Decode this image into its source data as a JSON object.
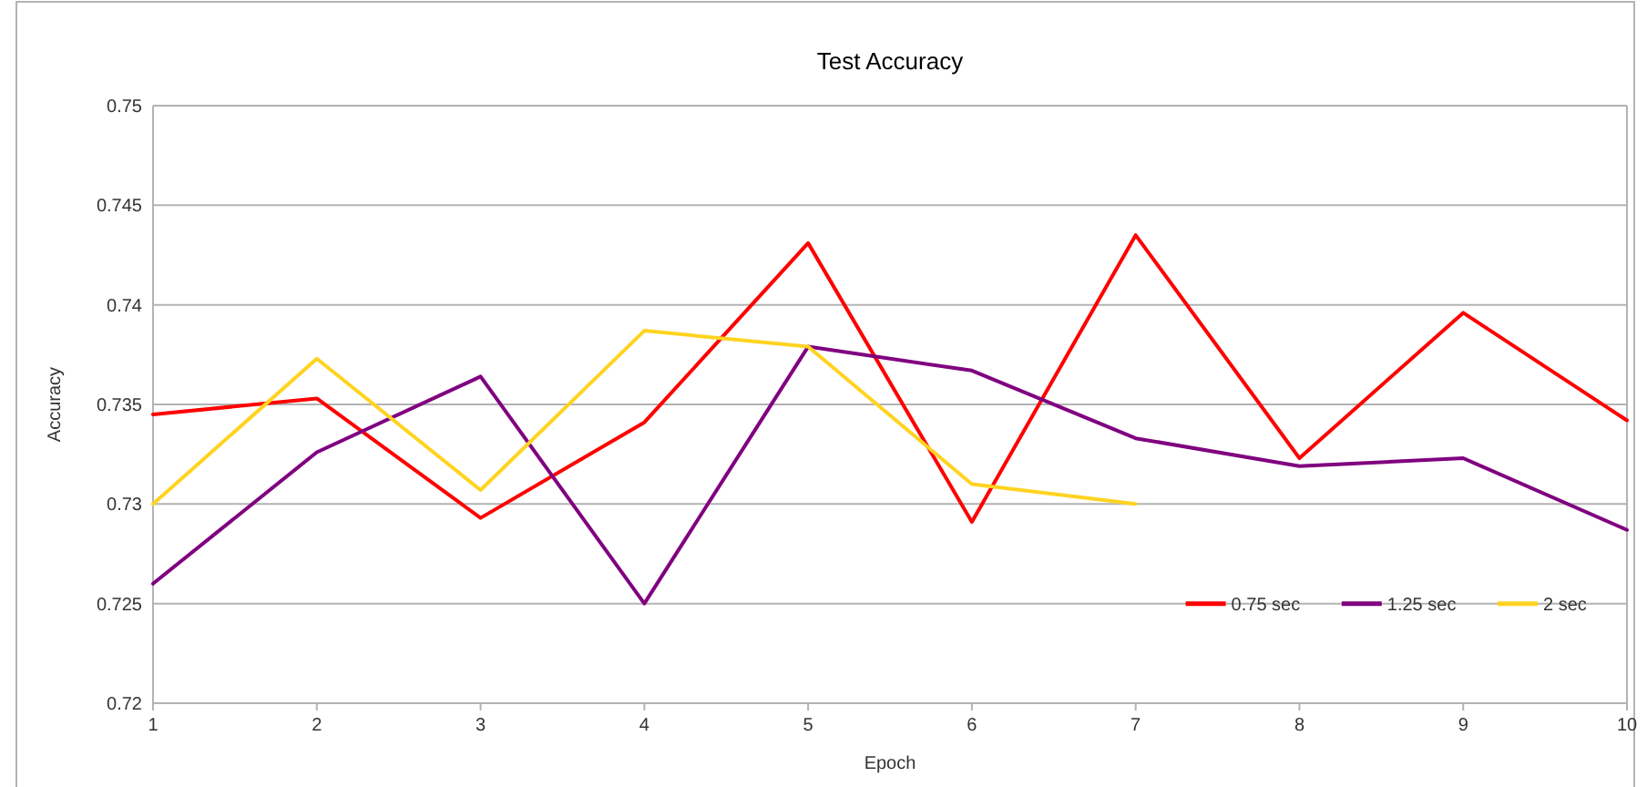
{
  "chart_data": {
    "type": "line",
    "title": "Test Accuracy",
    "xlabel": "Epoch",
    "ylabel": "Accuracy",
    "x": [
      1,
      2,
      3,
      4,
      5,
      6,
      7,
      8,
      9,
      10
    ],
    "xlim": [
      1,
      10
    ],
    "xticks": [
      1,
      2,
      3,
      4,
      5,
      6,
      7,
      8,
      9,
      10
    ],
    "ylim": [
      0.72,
      0.75
    ],
    "yticks": [
      0.72,
      0.725,
      0.73,
      0.735,
      0.74,
      0.745,
      0.75
    ],
    "grid": "y",
    "legend": "bottom right",
    "marker": "none",
    "line_style": "solid",
    "series": [
      {
        "name": "0.75 sec",
        "color": "#ff0000",
        "values": [
          0.7345,
          0.7353,
          0.7293,
          0.7341,
          0.7431,
          0.7291,
          0.7435,
          0.7323,
          0.7396,
          0.7342
        ]
      },
      {
        "name": "1.25 sec",
        "color": "#800080",
        "values": [
          0.726,
          0.7326,
          0.7364,
          0.725,
          0.7379,
          0.7367,
          0.7333,
          0.7319,
          0.7323,
          0.7287
        ]
      },
      {
        "name": "2 sec",
        "color": "#ffd320",
        "values": [
          0.73,
          0.7373,
          0.7307,
          0.7387,
          0.7379,
          0.731,
          0.73,
          null,
          null,
          null
        ]
      }
    ]
  }
}
